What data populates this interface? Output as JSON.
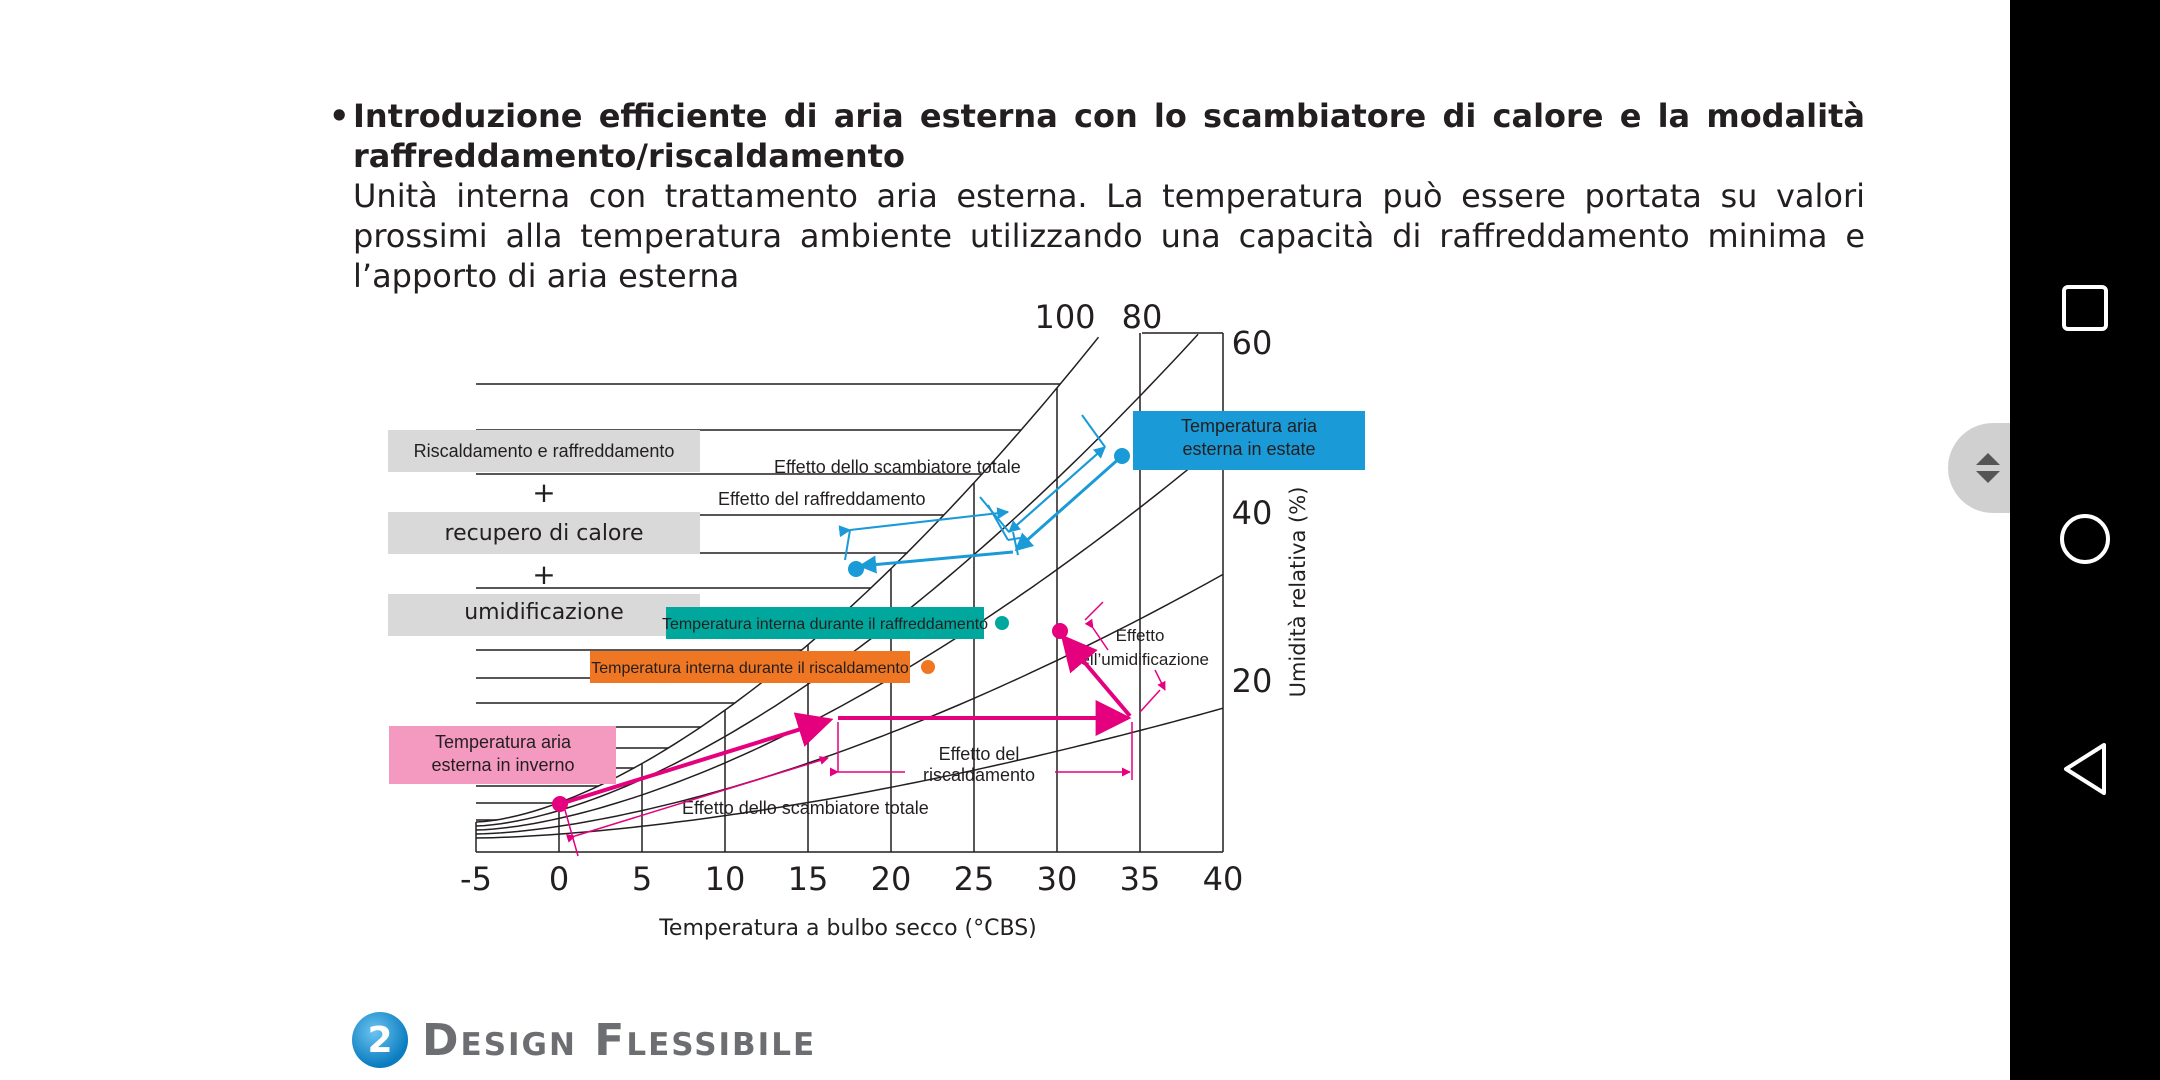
{
  "bullet": {
    "title": "Introduzione efficiente di aria esterna con lo scambiatore di calore e la modalità raffreddamento/riscaldamento",
    "body": "Unità interna con trattamento aria esterna. La temperatura può essere portata su valori prossimi alla temperatura ambiente utilizzando una capacità di raffreddamento minima e l’apporto di aria esterna"
  },
  "chart_data": {
    "type": "scatter",
    "xlabel": "Temperatura a bulbo secco (°CBS)",
    "ylabel": "Umidità relativa (%)",
    "x_ticks": [
      "-5",
      "0",
      "5",
      "10",
      "15",
      "20",
      "25",
      "30",
      "35",
      "40"
    ],
    "xlim": [
      -5,
      40
    ],
    "rh_curve_labels": [
      "100",
      "80",
      "60",
      "40",
      "20"
    ],
    "grid": true,
    "left_boxes": {
      "line1": "Riscaldamento e raffreddamento",
      "plus1": "+",
      "line2": "recupero di calore",
      "plus2": "+",
      "line3": "umidificazione"
    },
    "labels": {
      "summer_outdoor": "Temperatura aria esterna in estate",
      "winter_outdoor": "Temperatura aria esterna in inverno",
      "indoor_cooling": "Temperatura interna durante il raffreddamento",
      "indoor_heating": "Temperatura interna durante il riscaldamento",
      "cooling_total_exchanger": "Effetto dello scambiatore totale",
      "cooling_effect": "Effetto del raffreddamento",
      "humidification_effect": "Effetto dell’umidificazione",
      "heating_effect": "Effetto del riscaldamento",
      "heating_total_exchanger": "Effetto dello scambiatore totale"
    },
    "series": [
      {
        "name": "summer",
        "color": "#1a9ad7",
        "x": [
          33.5,
          27,
          18
        ],
        "y": [
          21.8,
          17.9,
          15.9
        ]
      },
      {
        "name": "winter",
        "color": "#e5007e",
        "x": [
          0,
          17,
          34.5,
          30
        ],
        "y": [
          2.7,
          7.9,
          7.9,
          13.8
        ]
      }
    ],
    "markers": [
      {
        "name": "indoor_cooling",
        "color": "#00a79d",
        "x": 26.5,
        "y": 14.1
      },
      {
        "name": "indoor_heating",
        "color": "#ef7622",
        "x": 22,
        "y": 11.2
      }
    ],
    "colors": {
      "summer": "#1a9ad7",
      "winter": "#e5007e",
      "cooling_box": "#00a79d",
      "heating_box": "#ef7622",
      "winter_box": "#f49ac1",
      "gray_box": "#d9d9da"
    }
  },
  "section": {
    "number": "2",
    "title": "Design Flessibile"
  },
  "nav": {
    "recents": "recents-icon",
    "home": "home-icon",
    "back": "back-icon"
  }
}
